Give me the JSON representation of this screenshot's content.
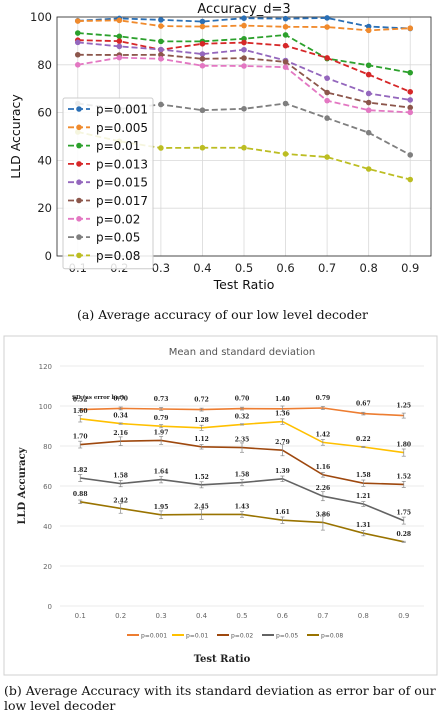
{
  "chart_data": [
    {
      "type": "line",
      "title": "Accuracy_d=3",
      "xlabel": "Test Ratio",
      "ylabel": "LLD Accuracy",
      "x": [
        0.1,
        0.2,
        0.3,
        0.4,
        0.5,
        0.6,
        0.7,
        0.8,
        0.9
      ],
      "xticks": [
        "0.1",
        "0.2",
        "0.3",
        "0.4",
        "0.5",
        "0.6",
        "0.7",
        "0.8",
        "0.9"
      ],
      "ylim": [
        0,
        100
      ],
      "yticks": [
        "0",
        "20",
        "40",
        "60",
        "80",
        "100"
      ],
      "grid": true,
      "legend_position": "left",
      "series": [
        {
          "name": "p=0.001",
          "color": "#2a6fb5",
          "values": [
            98.4,
            99.4,
            98.8,
            98.1,
            99.5,
            99.3,
            99.6,
            96.0,
            95.2
          ]
        },
        {
          "name": "p=0.005",
          "color": "#f08a2c",
          "values": [
            98.3,
            98.6,
            96.2,
            96.0,
            96.4,
            95.9,
            95.8,
            94.4,
            95.3
          ]
        },
        {
          "name": "p=0.01",
          "color": "#2ca02c",
          "values": [
            93.3,
            91.9,
            89.8,
            89.8,
            90.9,
            92.5,
            82.6,
            79.8,
            76.7
          ]
        },
        {
          "name": "p=0.013",
          "color": "#d62728",
          "values": [
            90.3,
            89.9,
            86.3,
            88.8,
            89.3,
            88.0,
            82.9,
            75.9,
            68.7
          ]
        },
        {
          "name": "p=0.015",
          "color": "#9467bd",
          "values": [
            89.4,
            87.7,
            86.4,
            84.5,
            86.3,
            81.8,
            74.4,
            68.0,
            65.3
          ]
        },
        {
          "name": "p=0.017",
          "color": "#8c564b",
          "values": [
            84.2,
            84.1,
            84.2,
            82.5,
            82.8,
            81.2,
            68.4,
            64.2,
            62.1
          ]
        },
        {
          "name": "p=0.02",
          "color": "#e377c2",
          "values": [
            80.0,
            83.0,
            82.5,
            79.6,
            79.5,
            79.0,
            65.0,
            61.0,
            60.1
          ]
        },
        {
          "name": "p=0.05",
          "color": "#7f7f7f",
          "values": [
            63.8,
            61.5,
            63.4,
            61.0,
            61.6,
            63.8,
            57.7,
            51.6,
            42.3
          ]
        },
        {
          "name": "p=0.08",
          "color": "#bcbd22",
          "values": [
            51.9,
            48.0,
            45.2,
            45.3,
            45.3,
            42.7,
            41.4,
            36.4,
            32.0
          ]
        }
      ],
      "caption": "(a)  Average accuracy of our low level decoder"
    },
    {
      "type": "line",
      "title": "Mean and standard deviation",
      "xlabel": "Test Ratio",
      "ylabel": "LLD Accuracy",
      "x": [
        0.1,
        0.2,
        0.3,
        0.4,
        0.5,
        0.6,
        0.7,
        0.8,
        0.9
      ],
      "xticks": [
        "0.1",
        "0.2",
        "0.3",
        "0.4",
        "0.5",
        "0.6",
        "0.7",
        "0.8",
        "0.9"
      ],
      "ylim": [
        0,
        120
      ],
      "yticks": [
        "0",
        "20",
        "40",
        "60",
        "80",
        "100",
        "120"
      ],
      "grid": true,
      "legend_position": "bottom",
      "annotation": "SD (as error bar)",
      "series": [
        {
          "name": "p=0.001",
          "color": "#ed7d31",
          "values": [
            98.2,
            98.8,
            98.5,
            98.2,
            98.7,
            98.6,
            99.0,
            96.2,
            95.2
          ],
          "sd": [
            "0.52",
            "0.70",
            "0.73",
            "0.72",
            "0.70",
            "1.40",
            "0.79",
            "0.67",
            "1.25"
          ]
        },
        {
          "name": "p=0.01",
          "color": "#ffc000",
          "values": [
            93.6,
            91.2,
            89.9,
            89.1,
            90.8,
            92.2,
            81.8,
            79.5,
            76.7
          ],
          "sd": [
            "1.60",
            "0.34",
            "0.79",
            "1.28",
            "0.32",
            "1.36",
            "1.42",
            "0.22",
            "1.80"
          ]
        },
        {
          "name": "p=0.02",
          "color": "#9e480e",
          "values": [
            80.7,
            82.4,
            82.8,
            79.6,
            79.2,
            77.9,
            65.6,
            61.4,
            60.8
          ],
          "sd": [
            "1.70",
            "2.16",
            "1.97",
            "1.12",
            "2.35",
            "2.79",
            "1.16",
            "1.58",
            "1.52"
          ]
        },
        {
          "name": "p=0.05",
          "color": "#636363",
          "values": [
            64.0,
            61.2,
            63.2,
            60.6,
            61.7,
            63.6,
            54.9,
            51.0,
            42.7
          ],
          "sd": [
            "1.82",
            "1.58",
            "1.64",
            "1.52",
            "1.58",
            "1.39",
            "2.26",
            "1.21",
            "1.75"
          ]
        },
        {
          "name": "p=0.08",
          "color": "#997300",
          "values": [
            52.1,
            48.8,
            45.6,
            45.8,
            45.8,
            42.9,
            41.8,
            36.4,
            32.1
          ],
          "sd": [
            "0.88",
            "2.42",
            "1.95",
            "2.45",
            "1.43",
            "1.61",
            "3.86",
            "1.31",
            "0.28"
          ]
        }
      ],
      "caption": "(b)  Average Accuracy with its standard deviation as error bar of our low level decoder"
    }
  ]
}
